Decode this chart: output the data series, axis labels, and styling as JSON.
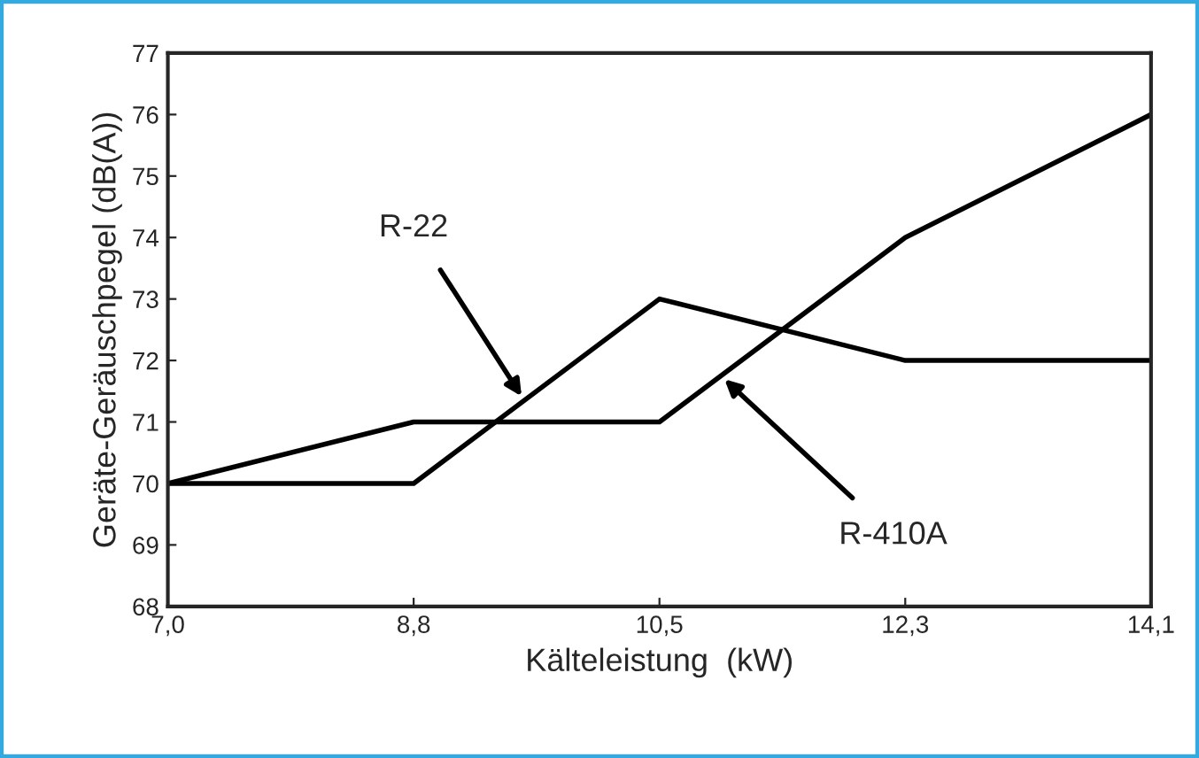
{
  "chart_data": {
    "type": "line",
    "xlabel": "Kälteleistung  (kW)",
    "ylabel": "Geräte-Geräuschpegel (dB(A))",
    "categories": [
      "7,0",
      "8,8",
      "10,5",
      "12,3",
      "14,1"
    ],
    "series": [
      {
        "name": "R-22",
        "color": "#000000",
        "values": [
          70,
          70,
          73,
          72,
          72
        ]
      },
      {
        "name": "R-410A",
        "color": "#000000",
        "values": [
          70,
          71,
          71,
          74,
          76
        ]
      }
    ],
    "ylim": [
      68,
      77
    ],
    "yticks": [
      68,
      69,
      70,
      71,
      72,
      73,
      74,
      75,
      76,
      77
    ],
    "grid": false,
    "legend": false,
    "marker": "none",
    "line_style": "solid"
  }
}
